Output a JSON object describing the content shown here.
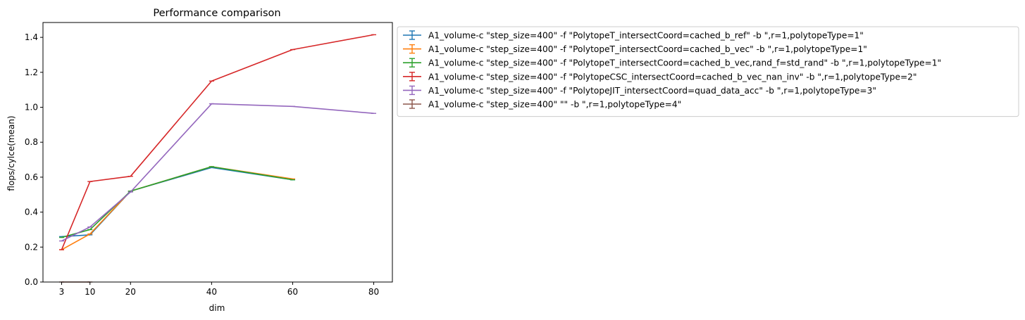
{
  "chart_data": {
    "type": "line",
    "title": "Performance comparison",
    "xlabel": "dim",
    "ylabel": "flops/cylce(mean)",
    "xticks": [
      3,
      10,
      20,
      40,
      60,
      80
    ],
    "yticks": [
      0.0,
      0.2,
      0.4,
      0.6,
      0.8,
      1.0,
      1.2,
      1.4
    ],
    "ytick_labels": [
      "0.0",
      "0.2",
      "0.4",
      "0.6",
      "0.8",
      "1.0",
      "1.2",
      "1.4"
    ],
    "xlim": [
      -1.6,
      84.6
    ],
    "ylim": [
      0.0,
      1.485
    ],
    "legend_position": "outside-right-top",
    "series": [
      {
        "name": "A1_volume-c \"step_size=400\" -f \"PolytopeT_intersectCoord=cached_b_ref\" -b \",r=1,polytopeType=1\"",
        "color": "#1f77b4",
        "x": [
          3,
          10,
          20,
          40,
          60
        ],
        "y": [
          0.26,
          0.27,
          0.52,
          0.655,
          0.585
        ]
      },
      {
        "name": "A1_volume-c \"step_size=400\" -f \"PolytopeT_intersectCoord=cached_b_vec\" -b \",r=1,polytopeType=1\"",
        "color": "#ff7f0e",
        "x": [
          3,
          10,
          20,
          40,
          60
        ],
        "y": [
          0.185,
          0.275,
          0.52,
          0.66,
          0.59
        ]
      },
      {
        "name": "A1_volume-c \"step_size=400\" -f \"PolytopeT_intersectCoord=cached_b_vec,rand_f=std_rand\" -b \",r=1,polytopeType=1\"",
        "color": "#2ca02c",
        "x": [
          3,
          10,
          20,
          40,
          60
        ],
        "y": [
          0.255,
          0.3,
          0.52,
          0.66,
          0.585
        ]
      },
      {
        "name": "A1_volume-c \"step_size=400\" -f \"PolytopeCSC_intersectCoord=cached_b_vec_nan_inv\" -b \",r=1,polytopeType=2\"",
        "color": "#d62728",
        "x": [
          3,
          10,
          20,
          40,
          60,
          80
        ],
        "y": [
          0.185,
          0.575,
          0.605,
          1.15,
          1.33,
          1.415
        ]
      },
      {
        "name": "A1_volume-c \"step_size=400\" -f \"PolytopeJIT_intersectCoord=quad_data_acc\" -b \",r=1,polytopeType=3\"",
        "color": "#9467bd",
        "x": [
          3,
          10,
          20,
          40,
          60,
          80
        ],
        "y": [
          0.235,
          0.315,
          0.515,
          1.02,
          1.005,
          0.965
        ]
      },
      {
        "name": "A1_volume-c \"step_size=400\"  \"\" -b \",r=1,polytopeType=4\"",
        "color": "#8c564b",
        "x": [
          3,
          10
        ],
        "y": [
          0.0,
          0.0
        ]
      }
    ]
  }
}
